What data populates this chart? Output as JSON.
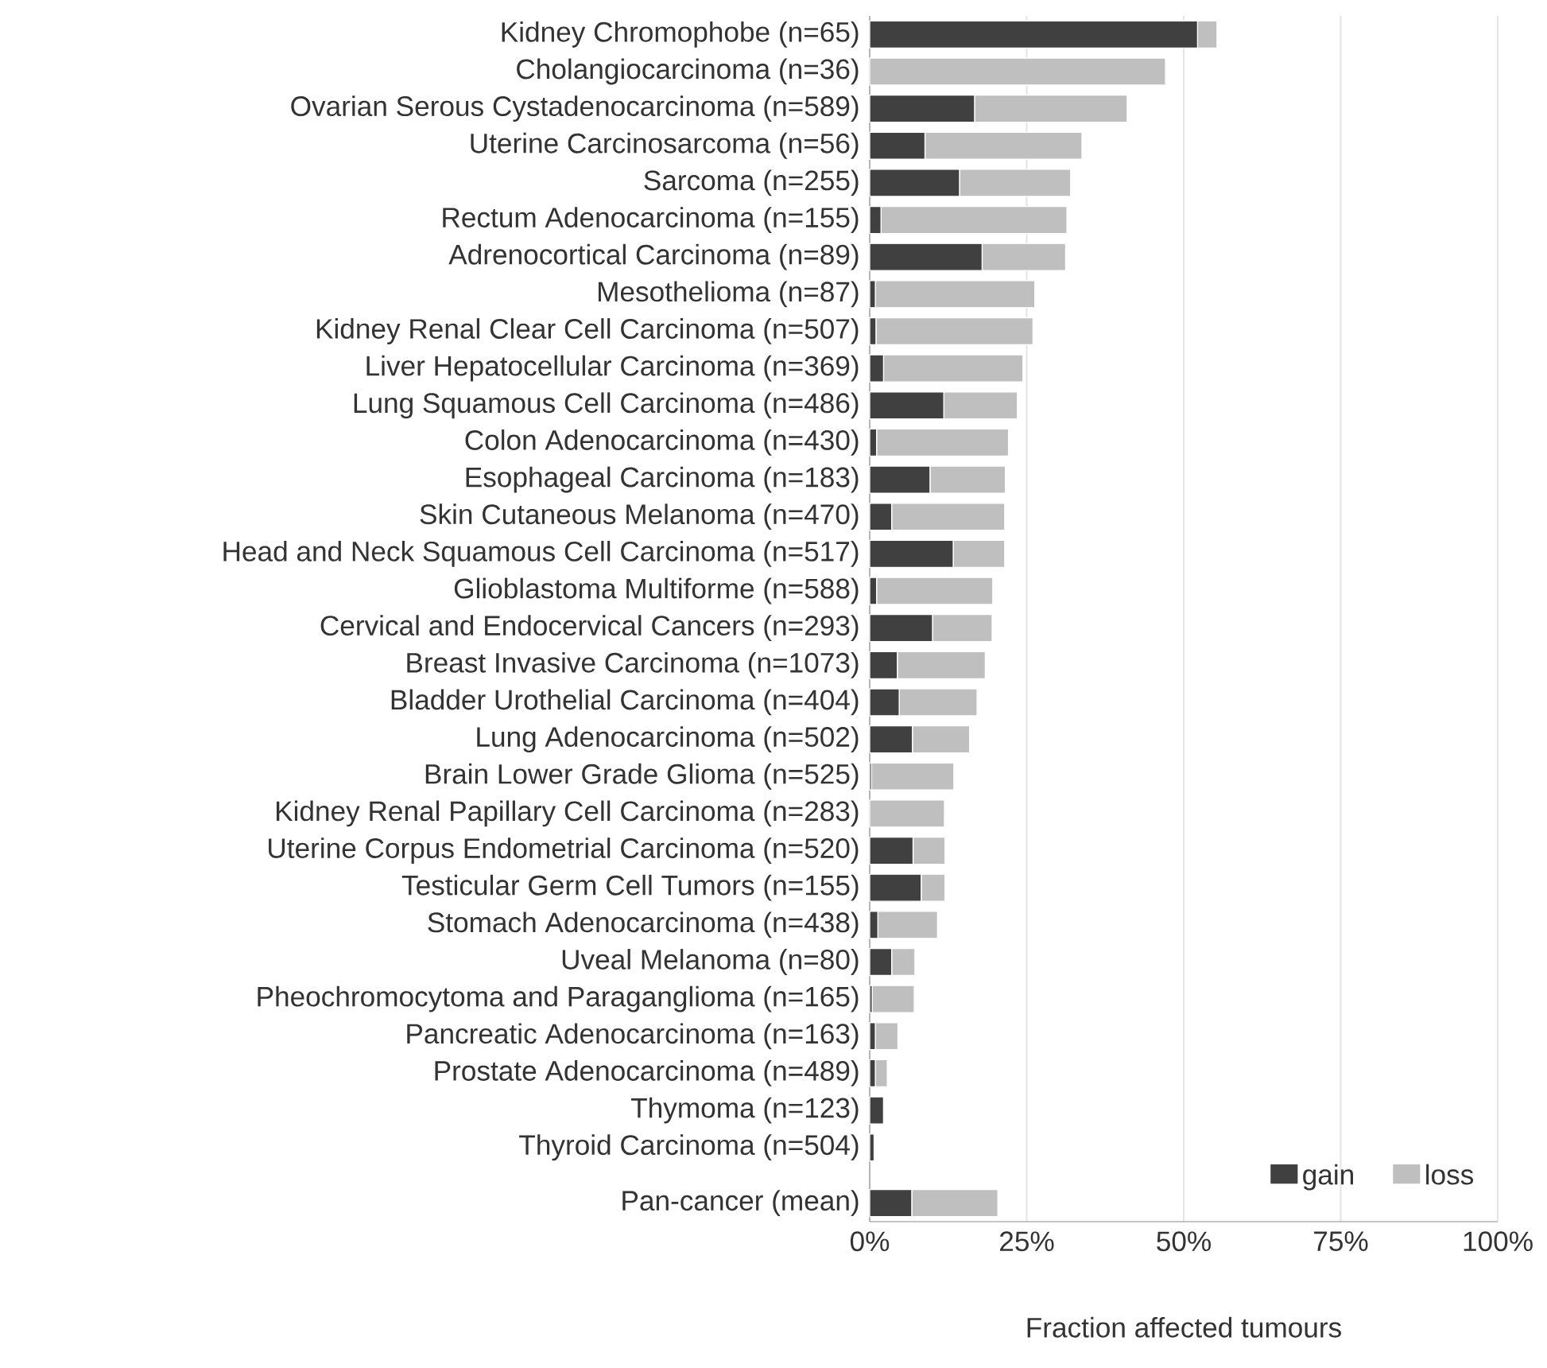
{
  "chart_data": {
    "type": "bar",
    "orientation": "horizontal",
    "stacked": true,
    "categories": [
      "Kidney Chromophobe (n=65)",
      "Cholangiocarcinoma (n=36)",
      "Ovarian Serous Cystadenocarcinoma (n=589)",
      "Uterine Carcinosarcoma (n=56)",
      "Sarcoma (n=255)",
      "Rectum Adenocarcinoma (n=155)",
      "Adrenocortical Carcinoma (n=89)",
      "Mesothelioma (n=87)",
      "Kidney Renal Clear Cell Carcinoma (n=507)",
      "Liver Hepatocellular Carcinoma (n=369)",
      "Lung Squamous Cell Carcinoma (n=486)",
      "Colon Adenocarcinoma (n=430)",
      "Esophageal Carcinoma (n=183)",
      "Skin Cutaneous Melanoma (n=470)",
      "Head and Neck Squamous Cell Carcinoma (n=517)",
      "Glioblastoma Multiforme (n=588)",
      "Cervical and Endocervical Cancers (n=293)",
      "Breast Invasive Carcinoma (n=1073)",
      "Bladder Urothelial Carcinoma (n=404)",
      "Lung Adenocarcinoma (n=502)",
      "Brain Lower Grade Glioma (n=525)",
      "Kidney Renal Papillary Cell Carcinoma (n=283)",
      "Uterine Corpus Endometrial Carcinoma (n=520)",
      "Testicular Germ Cell Tumors (n=155)",
      "Stomach Adenocarcinoma (n=438)",
      "Uveal Melanoma (n=80)",
      "Pheochromocytoma and Paraganglioma (n=165)",
      "Pancreatic Adenocarcinoma (n=163)",
      "Prostate Adenocarcinoma (n=489)",
      "Thymoma (n=123)",
      "Thyroid Carcinoma (n=504)",
      "Pan-cancer (mean)"
    ],
    "series": [
      {
        "name": "gain",
        "color": "#404040",
        "values": [
          52.2,
          0,
          16.7,
          8.8,
          14.3,
          1.8,
          17.9,
          0.9,
          1.0,
          2.2,
          11.8,
          1.1,
          9.6,
          3.5,
          13.3,
          1.1,
          10.0,
          4.4,
          4.7,
          6.8,
          0.3,
          0,
          6.9,
          8.2,
          1.3,
          3.5,
          0.4,
          0.9,
          0.9,
          2.2,
          0.7,
          6.7
        ]
      },
      {
        "name": "loss",
        "color": "#bfbfbf",
        "values": [
          3.1,
          47.1,
          24.3,
          25.0,
          17.7,
          29.6,
          13.3,
          25.4,
          25.0,
          22.2,
          11.7,
          21.0,
          12.0,
          18.0,
          8.2,
          18.5,
          9.5,
          14.0,
          12.4,
          9.1,
          13.1,
          11.9,
          5.1,
          3.8,
          9.5,
          3.7,
          6.7,
          3.6,
          1.9,
          0,
          0,
          13.7
        ]
      }
    ],
    "xlabel": "Fraction affected tumours",
    "xlim": [
      0,
      100
    ],
    "xticks": [
      {
        "value": 0,
        "label": "0%"
      },
      {
        "value": 25,
        "label": "25%"
      },
      {
        "value": 50,
        "label": "50%"
      },
      {
        "value": 75,
        "label": "75%"
      },
      {
        "value": 100,
        "label": "100%"
      }
    ],
    "grid": "x",
    "legend": "bottom right"
  }
}
